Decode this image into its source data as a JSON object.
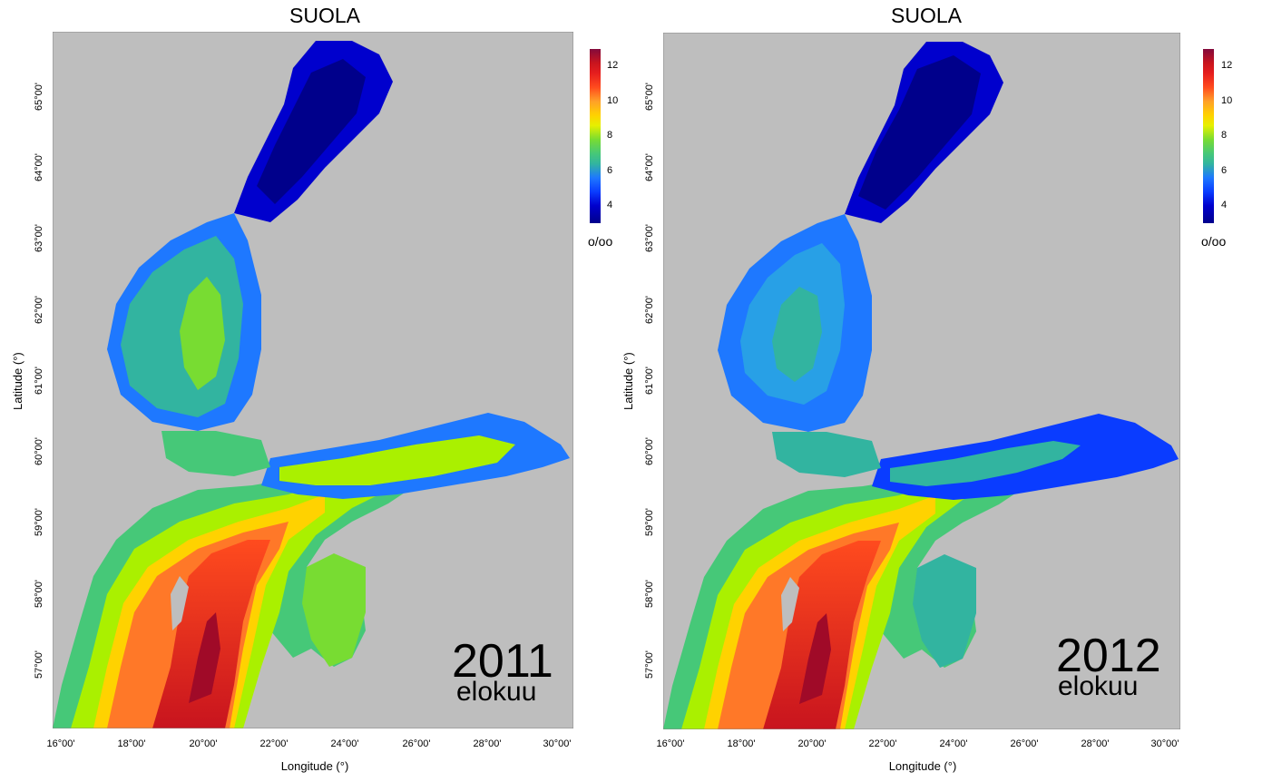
{
  "colors": {
    "land": "#bebebe",
    "frame": "#8a8a8a",
    "colorscale": [
      "#00008b",
      "#0000cd",
      "#0a3cff",
      "#1e78ff",
      "#28a0e6",
      "#32b4a0",
      "#46c878",
      "#78dc32",
      "#aaf000",
      "#e6f000",
      "#ffd200",
      "#ffa028",
      "#ff7828",
      "#ff4b1e",
      "#e61e1e",
      "#c8141e",
      "#a00a28",
      "#820a3c"
    ]
  },
  "panels": [
    {
      "title": "SUOLA",
      "year": "2011",
      "month": "elokuu",
      "x_ticks": [
        "16°00'",
        "18°00'",
        "20°00'",
        "22°00'",
        "24°00'",
        "26°00'",
        "28°00'",
        "30°00'"
      ],
      "y_ticks": [
        "57°00'",
        "58°00'",
        "59°00'",
        "60°00'",
        "61°00'",
        "62°00'",
        "63°00'",
        "64°00'",
        "65°00'"
      ],
      "x_label": "Longitude (°)",
      "y_label": "Latitude (°)",
      "colorbar_ticks": [
        "12",
        "10",
        "8",
        "6",
        "4"
      ],
      "colorbar_unit": "o/oo",
      "salinity_map": {
        "bothnian_bay": 3.5,
        "bothnian_sea_edge": 5.0,
        "bothnian_sea_core": 6.5,
        "gulf_of_finland_east": 3.5,
        "gulf_of_finland_west": 7.5,
        "gulf_of_riga": 6.0,
        "baltic_proper_coast": 7.5,
        "baltic_proper_deep": 12.5
      }
    },
    {
      "title": "SUOLA",
      "year": "2012",
      "month": "elokuu",
      "x_ticks": [
        "16°00'",
        "18°00'",
        "20°00'",
        "22°00'",
        "24°00'",
        "26°00'",
        "28°00'",
        "30°00'"
      ],
      "y_ticks": [
        "57°00'",
        "58°00'",
        "59°00'",
        "60°00'",
        "61°00'",
        "62°00'",
        "63°00'",
        "64°00'",
        "65°00'"
      ],
      "x_label": "Longitude (°)",
      "y_label": "Latitude (°)",
      "colorbar_ticks": [
        "12",
        "10",
        "8",
        "6",
        "4"
      ],
      "colorbar_unit": "o/oo",
      "salinity_map": {
        "bothnian_bay": 3.0,
        "bothnian_sea_edge": 4.5,
        "bothnian_sea_core": 5.5,
        "gulf_of_finland_east": 3.5,
        "gulf_of_finland_west": 6.5,
        "gulf_of_riga": 5.5,
        "baltic_proper_coast": 7.5,
        "baltic_proper_deep": 12.5
      }
    }
  ]
}
